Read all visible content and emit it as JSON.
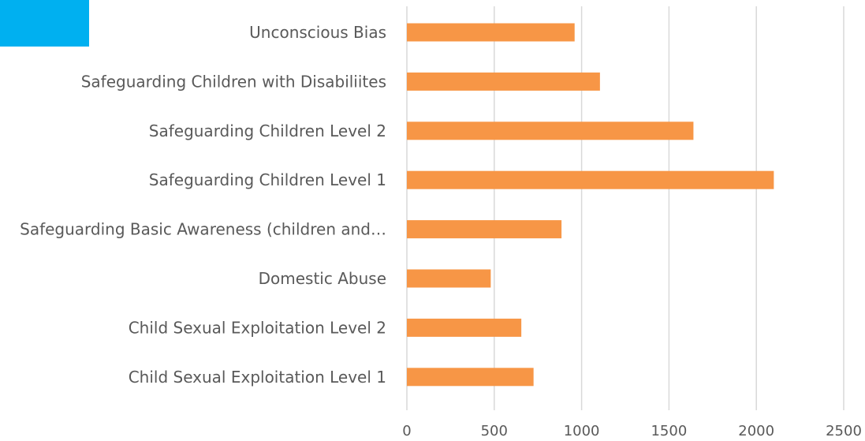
{
  "chart_data": {
    "type": "bar",
    "orientation": "horizontal",
    "categories": [
      "Unconscious Bias",
      "Safeguarding Children with Disabiliites",
      "Safeguarding Children Level 2",
      "Safeguarding Children Level 1",
      "Safeguarding Basic Awareness (children and…",
      "Domestic Abuse",
      "Child Sexual Exploitation Level 2",
      "Child Sexual Exploitation Level 1"
    ],
    "values": [
      960,
      1105,
      1640,
      2100,
      885,
      480,
      655,
      725
    ],
    "xlim": [
      0,
      2500
    ],
    "x_ticks": [
      0,
      500,
      1000,
      1500,
      2000,
      2500
    ],
    "tick_labels": [
      "0",
      "500",
      "1000",
      "1500",
      "2000",
      "2500"
    ],
    "grid": true,
    "title": "",
    "xlabel": "",
    "ylabel": "",
    "colors": {
      "bar": "#F79646",
      "grid": "#D9D9D9",
      "text": "#595959",
      "corner_block": "#00B0F0"
    }
  }
}
